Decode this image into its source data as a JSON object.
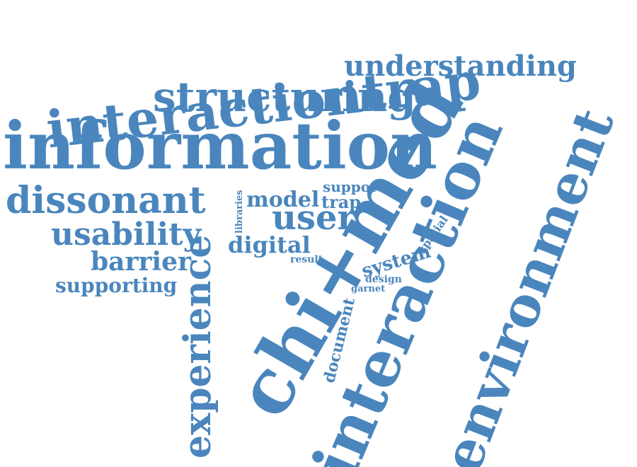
{
  "style": {
    "word_color": "#4a86bd",
    "background": "#ffffff"
  },
  "words": {
    "interactiontrap": "interactiontrap",
    "understanding": "understanding",
    "structuring": "structuring",
    "information": "information",
    "dissonant": "dissonant",
    "usability": "usability",
    "barrier": "barrier",
    "supporting": "supporting",
    "experience": "experience",
    "libraries": "libraries",
    "model": "model",
    "trap": "trap",
    "support": "support",
    "user": "user",
    "digital": "digital",
    "result": "result",
    "system": "system",
    "spatial": "spatial",
    "design": "design",
    "garnet": "garnet",
    "document": "document",
    "chi_med": "chi+med",
    "interaction": "interaction",
    "environment": "environment"
  }
}
